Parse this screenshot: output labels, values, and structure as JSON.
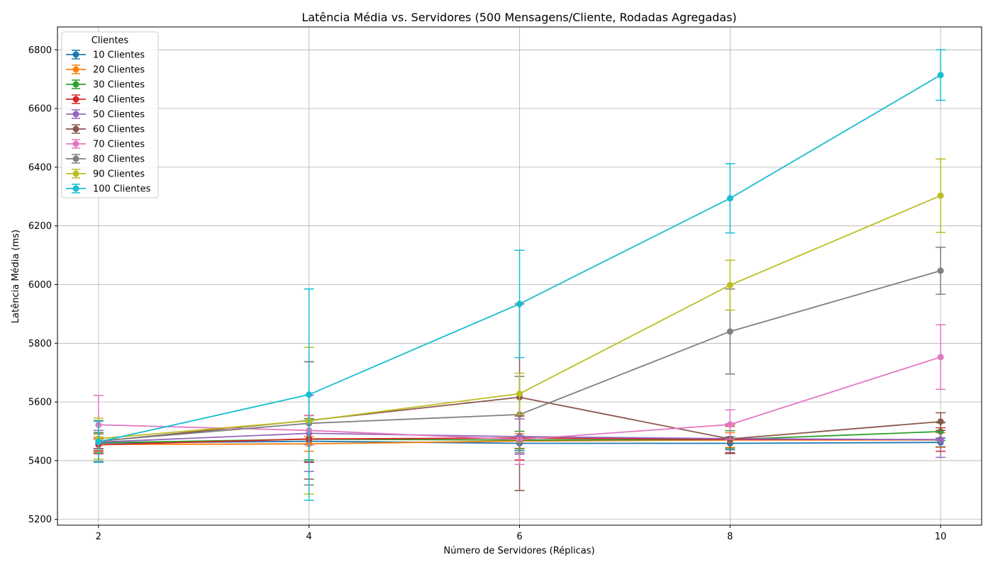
{
  "chart_data": {
    "type": "line",
    "title": "Latência Média vs. Servidores (500 Mensagens/Cliente, Rodadas Agregadas)",
    "xlabel": "Número de Servidores (Réplicas)",
    "ylabel": "Latência Média (ms)",
    "x": [
      2,
      4,
      6,
      8,
      10
    ],
    "x_ticks": [
      "2",
      "4",
      "6",
      "8",
      "10"
    ],
    "y_ticks": [
      "5200",
      "5400",
      "5600",
      "5800",
      "6000",
      "6200",
      "6400",
      "6600",
      "6800"
    ],
    "xlim": [
      1.61,
      10.39
    ],
    "ylim": [
      5180,
      6878
    ],
    "grid": true,
    "legend_title": "Clientes",
    "legend_position": "top-left",
    "series": [
      {
        "name": "10 Clientes",
        "color": "#1f77b4",
        "values": [
          5460,
          5466,
          5459,
          5459,
          5462
        ],
        "errors": [
          20,
          70,
          25,
          22,
          15
        ]
      },
      {
        "name": "20 Clientes",
        "color": "#ff7f0e",
        "values": [
          5455,
          5457,
          5467,
          5470,
          5470
        ],
        "errors": [
          25,
          25,
          25,
          25,
          25
        ]
      },
      {
        "name": "30 Clientes",
        "color": "#2ca02c",
        "values": [
          5461,
          5473,
          5470,
          5472,
          5499
        ],
        "errors": [
          35,
          70,
          30,
          30,
          30
        ]
      },
      {
        "name": "40 Clientes",
        "color": "#d62728",
        "values": [
          5454,
          5474,
          5477,
          5472,
          5472
        ],
        "errors": [
          20,
          80,
          75,
          45,
          40
        ]
      },
      {
        "name": "50 Clientes",
        "color": "#9467bd",
        "values": [
          5463,
          5493,
          5482,
          5475,
          5471
        ],
        "errors": [
          40,
          130,
          60,
          50,
          60
        ]
      },
      {
        "name": "60 Clientes",
        "color": "#8c564b",
        "values": [
          5466,
          5537,
          5616,
          5474,
          5533
        ],
        "errors": [
          25,
          200,
          318,
          50,
          30
        ]
      },
      {
        "name": "70 Clientes",
        "color": "#e377c2",
        "values": [
          5522,
          5503,
          5472,
          5523,
          5753
        ],
        "errors": [
          100,
          50,
          85,
          50,
          110
        ]
      },
      {
        "name": "80 Clientes",
        "color": "#7f7f7f",
        "values": [
          5467,
          5527,
          5557,
          5840,
          6047
        ],
        "errors": [
          70,
          210,
          130,
          145,
          80
        ]
      },
      {
        "name": "90 Clientes",
        "color": "#bcbd22",
        "values": [
          5475,
          5536,
          5628,
          5998,
          6303
        ],
        "errors": [
          70,
          250,
          70,
          85,
          125
        ]
      },
      {
        "name": "100 Clientes",
        "color": "#17becf",
        "values": [
          5464,
          5625,
          5934,
          6294,
          6714
        ],
        "errors": [
          70,
          360,
          183,
          118,
          86
        ]
      }
    ]
  }
}
